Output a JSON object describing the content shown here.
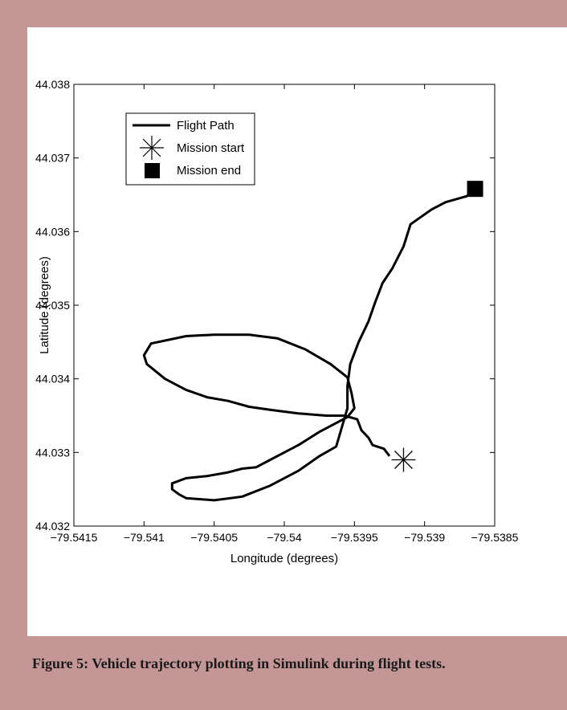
{
  "page": {
    "background_color": "#c49696",
    "panel_color": "#ffffff",
    "caption": "Figure 5: Vehicle trajectory plotting in Simulink during flight tests."
  },
  "chart_data": {
    "type": "line",
    "xlabel": "Longitude (degrees)",
    "ylabel": "Latitude (degrees)",
    "xlim": [
      -79.5415,
      -79.5385
    ],
    "ylim": [
      44.032,
      44.038
    ],
    "xticks": [
      -79.5415,
      -79.541,
      -79.5405,
      -79.54,
      -79.5395,
      -79.539,
      -79.5385
    ],
    "xtick_labels": [
      "−79.5415",
      "−79.541",
      "−79.5405",
      "−79.54",
      "−79.5395",
      "−79.539",
      "−79.5385"
    ],
    "yticks": [
      44.032,
      44.033,
      44.034,
      44.035,
      44.036,
      44.037,
      44.038
    ],
    "ytick_labels": [
      "44.032",
      "44.033",
      "44.034",
      "44.035",
      "44.036",
      "44.037",
      "44.038"
    ],
    "grid": false,
    "legend_position": "top-left",
    "line_color": "#000000",
    "series": [
      {
        "name": "Flight Path",
        "marker": "line",
        "x": [
          -79.53925,
          -79.53929,
          -79.53937,
          -79.5394,
          -79.53945,
          -79.53948,
          -79.53957,
          -79.5397,
          -79.5399,
          -79.5401,
          -79.54025,
          -79.5404,
          -79.54055,
          -79.5407,
          -79.54085,
          -79.54098,
          -79.541,
          -79.54095,
          -79.5407,
          -79.5405,
          -79.54025,
          -79.54005,
          -79.53985,
          -79.53967,
          -79.53955,
          -79.53952,
          -79.5395,
          -79.53955,
          -79.53975,
          -79.5399,
          -79.54,
          -79.5401,
          -79.5402,
          -79.5403,
          -79.5404,
          -79.54055,
          -79.5407,
          -79.5408,
          -79.5408,
          -79.54075,
          -79.5407,
          -79.5405,
          -79.5403,
          -79.5401,
          -79.5399,
          -79.53975,
          -79.53963,
          -79.53955,
          -79.53955,
          -79.53953,
          -79.53947,
          -79.5394,
          -79.53935,
          -79.5393,
          -79.53923,
          -79.53915,
          -79.5391,
          -79.53895,
          -79.53885,
          -79.5387,
          -79.53864
        ],
        "y": [
          44.03295,
          44.03305,
          44.0331,
          44.0332,
          44.0333,
          44.03345,
          44.0335,
          44.0335,
          44.03353,
          44.03358,
          44.03362,
          44.0337,
          44.03375,
          44.03385,
          44.034,
          44.0342,
          44.03432,
          44.03448,
          44.03458,
          44.0346,
          44.0346,
          44.03455,
          44.0344,
          44.0342,
          44.03402,
          44.0338,
          44.0336,
          44.03348,
          44.03328,
          44.0331,
          44.033,
          44.0329,
          44.0328,
          44.03278,
          44.03273,
          44.03268,
          44.03265,
          44.03258,
          44.0325,
          44.03243,
          44.03238,
          44.03235,
          44.0324,
          44.03255,
          44.03275,
          44.03295,
          44.03308,
          44.0336,
          44.0339,
          44.0342,
          44.0345,
          44.03478,
          44.03505,
          44.0353,
          44.0355,
          44.0358,
          44.0361,
          44.0363,
          44.0364,
          44.03648,
          44.03658
        ]
      },
      {
        "name": "Mission start",
        "marker": "asterisk",
        "x": [
          -79.53915
        ],
        "y": [
          44.0329
        ]
      },
      {
        "name": "Mission end",
        "marker": "square",
        "x": [
          -79.53864
        ],
        "y": [
          44.03658
        ]
      }
    ]
  }
}
